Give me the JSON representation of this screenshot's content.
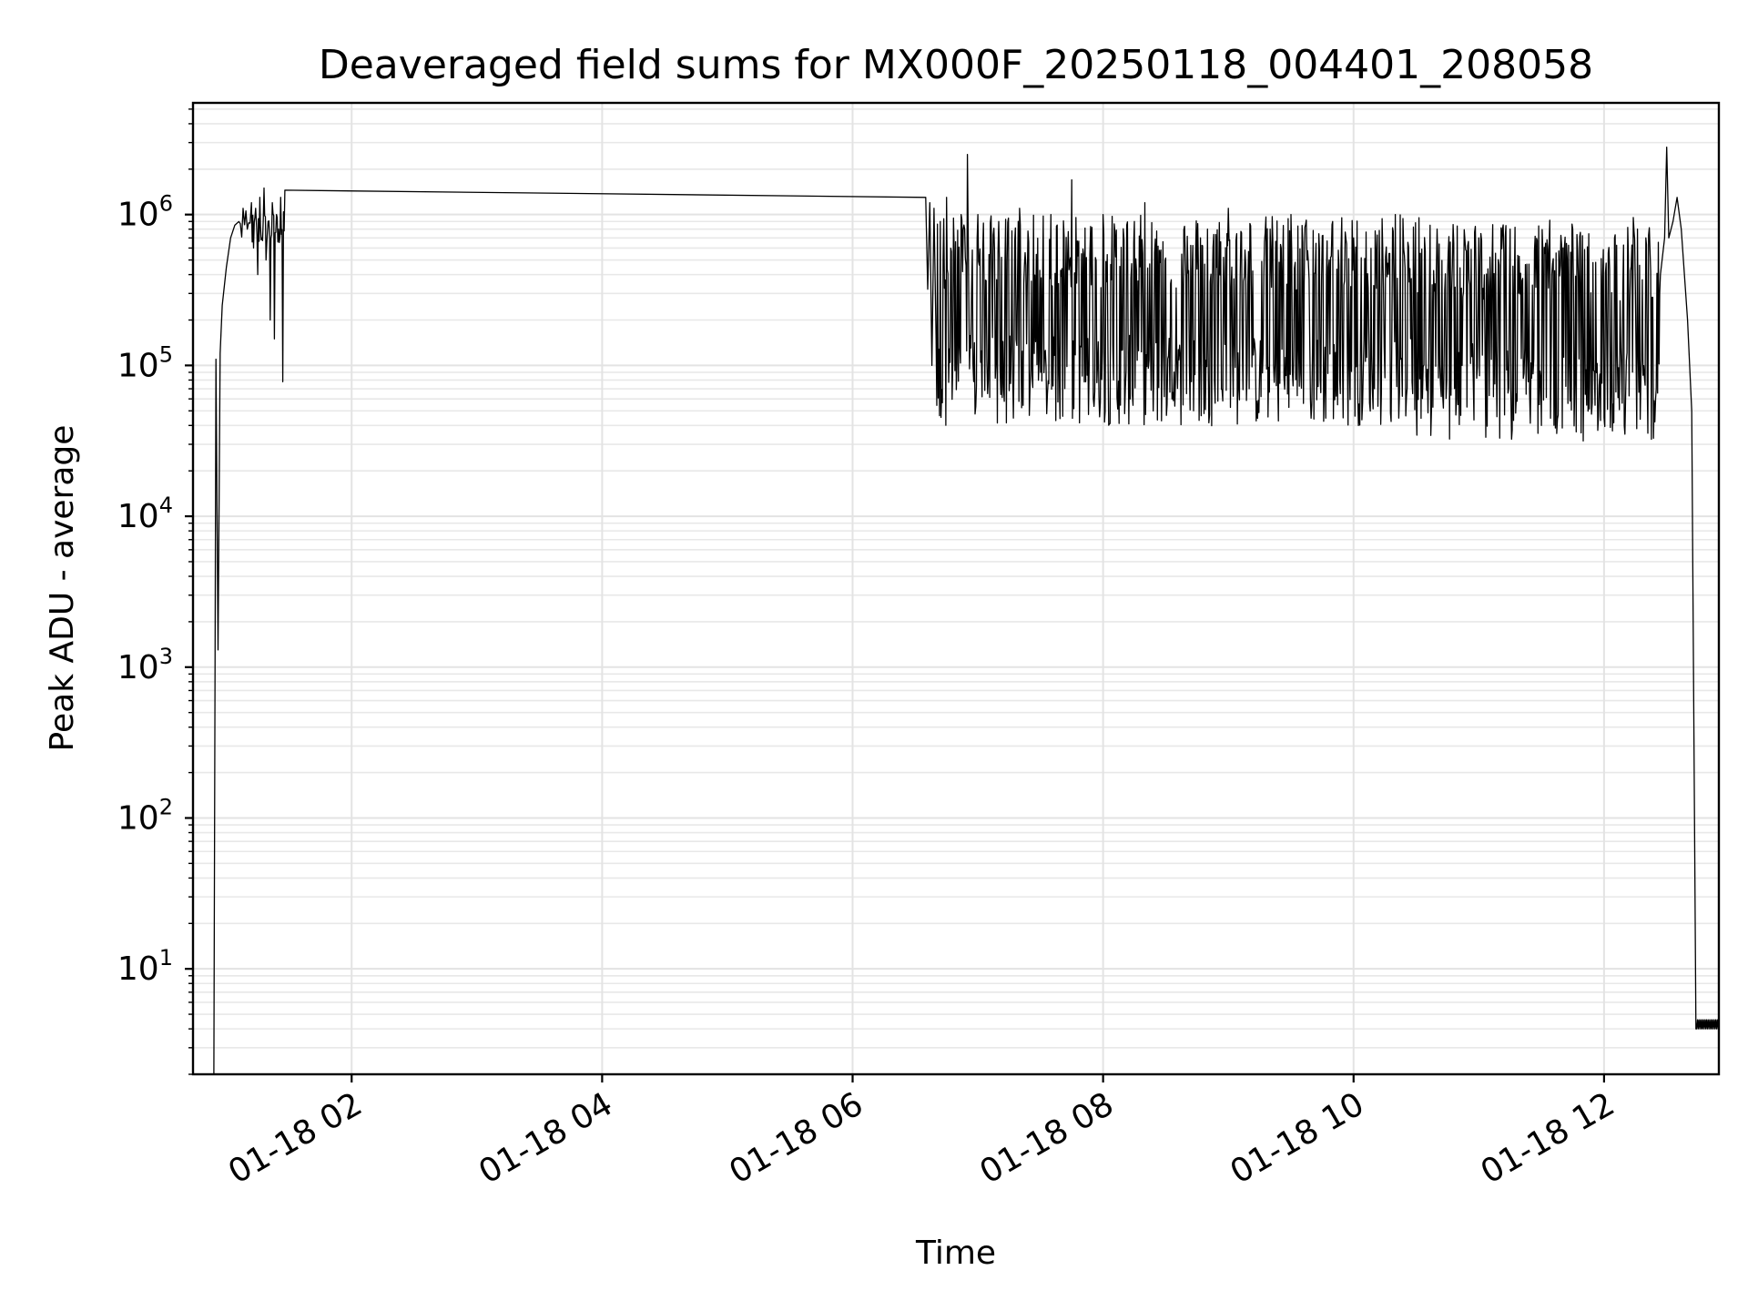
{
  "chart_data": {
    "type": "line",
    "title": "Deaveraged field sums for MX000F_20250118_004401_208058",
    "xlabel": "Time",
    "ylabel": "Peak ADU - average",
    "y_scale": "log",
    "ylim": [
      2,
      5500000
    ],
    "xlim": [
      "01-18 00:44",
      "01-18 12:55"
    ],
    "x_ticks": [
      "01-18 02",
      "01-18 04",
      "01-18 06",
      "01-18 08",
      "01-18 10",
      "01-18 12"
    ],
    "x_tick_times": [
      "01-18 02:00",
      "01-18 04:00",
      "01-18 06:00",
      "01-18 08:00",
      "01-18 10:00",
      "01-18 12:00"
    ],
    "y_ticks": [
      {
        "base": "10",
        "exp": "1",
        "value": 10
      },
      {
        "base": "10",
        "exp": "2",
        "value": 100
      },
      {
        "base": "10",
        "exp": "3",
        "value": 1000
      },
      {
        "base": "10",
        "exp": "4",
        "value": 10000
      },
      {
        "base": "10",
        "exp": "5",
        "value": 100000
      },
      {
        "base": "10",
        "exp": "6",
        "value": 1000000
      }
    ],
    "grid": true,
    "line_color": "#000000",
    "series": [
      {
        "points": [
          [
            "01-18 00:54",
            2
          ],
          [
            "01-18 00:55",
            110000
          ],
          [
            "01-18 00:56",
            1300
          ],
          [
            "01-18 00:57",
            120000
          ],
          [
            "01-18 00:58",
            250000
          ],
          [
            "01-18 01:00",
            450000
          ],
          [
            "01-18 01:02",
            700000
          ],
          [
            "01-18 01:04",
            850000
          ],
          [
            "01-18 01:06",
            900000
          ],
          [
            "01-18 01:08",
            1100000
          ],
          [
            "01-18 01:10",
            800000
          ],
          [
            "01-18 01:12",
            1200000
          ],
          [
            "01-18 01:13",
            600000
          ],
          [
            "01-18 01:14",
            1100000
          ],
          [
            "01-18 01:15",
            400000
          ],
          [
            "01-18 01:16",
            1300000
          ],
          [
            "01-18 01:17",
            700000
          ],
          [
            "01-18 01:18",
            1500000
          ],
          [
            "01-18 01:19",
            500000
          ],
          [
            "01-18 01:20",
            900000
          ],
          [
            "01-18 01:21",
            200000
          ],
          [
            "01-18 01:22",
            1200000
          ],
          [
            "01-18 01:23",
            150000
          ],
          [
            "01-18 01:24",
            1000000
          ],
          [
            "01-18 01:25",
            800000
          ],
          [
            "01-18 01:26",
            1300000
          ],
          [
            "01-18 01:27",
            78000
          ],
          [
            "01-18 01:28",
            1450000
          ],
          [
            "01-18 06:35",
            1300000
          ],
          [
            "01-18 06:36",
            320000
          ],
          [
            "01-18 06:37",
            1200000
          ],
          [
            "01-18 06:38",
            100000
          ],
          [
            "01-18 06:39",
            1100000
          ],
          [
            "01-18 06:40",
            150000
          ],
          [
            "01-18 06:42",
            900000
          ],
          [
            "01-18 06:45",
            1300000
          ],
          [
            "01-18 06:48",
            110000
          ],
          [
            "01-18 06:52",
            1000000
          ],
          [
            "01-18 06:55",
            2500000
          ],
          [
            "01-18 06:56",
            95000
          ],
          [
            "01-18 07:00",
            1000000
          ],
          [
            "01-18 07:05",
            80000
          ],
          [
            "01-18 07:10",
            900000
          ],
          [
            "01-18 07:15",
            68000
          ],
          [
            "01-18 07:20",
            1100000
          ],
          [
            "01-18 07:30",
            90000
          ],
          [
            "01-18 07:35",
            1000000
          ],
          [
            "01-18 07:45",
            1700000
          ],
          [
            "01-18 07:50",
            85000
          ],
          [
            "01-18 08:00",
            1000000
          ],
          [
            "01-18 08:05",
            80000
          ],
          [
            "01-18 08:15",
            900000
          ],
          [
            "01-18 08:20",
            1200000
          ],
          [
            "01-18 08:40",
            65000
          ],
          [
            "01-18 08:50",
            800000
          ],
          [
            "01-18 09:00",
            1100000
          ],
          [
            "01-18 09:10",
            70000
          ],
          [
            "01-18 09:20",
            800000
          ],
          [
            "01-18 09:30",
            1000000
          ],
          [
            "01-18 09:40",
            55000
          ],
          [
            "01-18 09:50",
            900000
          ],
          [
            "01-18 10:00",
            700000
          ],
          [
            "01-18 10:10",
            70000
          ],
          [
            "01-18 10:20",
            1000000
          ],
          [
            "01-18 10:30",
            60000
          ],
          [
            "01-18 10:40",
            800000
          ],
          [
            "01-18 10:50",
            55000
          ],
          [
            "01-18 11:00",
            700000
          ],
          [
            "01-18 11:10",
            33000
          ],
          [
            "01-18 11:15",
            800000
          ],
          [
            "01-18 11:30",
            40000
          ],
          [
            "01-18 11:45",
            800000
          ],
          [
            "01-18 12:00",
            45000
          ],
          [
            "01-18 12:05",
            700000
          ],
          [
            "01-18 12:10",
            35000
          ],
          [
            "01-18 12:20",
            700000
          ],
          [
            "01-18 12:25",
            70000
          ],
          [
            "01-18 12:27",
            400000
          ],
          [
            "01-18 12:29",
            700000
          ],
          [
            "01-18 12:30",
            2800000
          ],
          [
            "01-18 12:31",
            700000
          ],
          [
            "01-18 12:33",
            900000
          ],
          [
            "01-18 12:35",
            1300000
          ],
          [
            "01-18 12:37",
            800000
          ],
          [
            "01-18 12:40",
            200000
          ],
          [
            "01-18 12:42",
            50000
          ],
          [
            "01-18 12:44",
            4
          ],
          [
            "01-18 12:55",
            4
          ]
        ]
      }
    ]
  }
}
